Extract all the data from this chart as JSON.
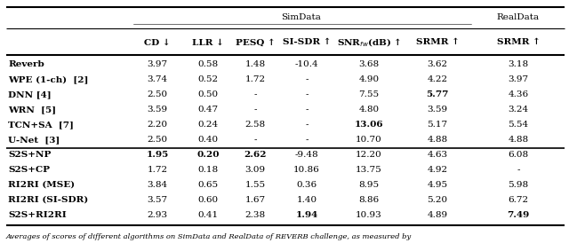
{
  "rows": [
    {
      "name": "Reverb",
      "bold_name": true,
      "values": [
        "3.97",
        "0.58",
        "1.48",
        "-10.4",
        "3.68",
        "3.62",
        "3.18"
      ],
      "bold": [
        false,
        false,
        false,
        false,
        false,
        false,
        false
      ]
    },
    {
      "name": "WPE (1-ch)  [2]",
      "bold_name": true,
      "values": [
        "3.74",
        "0.52",
        "1.72",
        "-",
        "4.90",
        "4.22",
        "3.97"
      ],
      "bold": [
        false,
        false,
        false,
        false,
        false,
        false,
        false
      ]
    },
    {
      "name": "DNN [4]",
      "bold_name": true,
      "values": [
        "2.50",
        "0.50",
        "-",
        "-",
        "7.55",
        "5.77",
        "4.36"
      ],
      "bold": [
        false,
        false,
        false,
        false,
        false,
        true,
        false
      ]
    },
    {
      "name": "WRN  [5]",
      "bold_name": true,
      "values": [
        "3.59",
        "0.47",
        "-",
        "-",
        "4.80",
        "3.59",
        "3.24"
      ],
      "bold": [
        false,
        false,
        false,
        false,
        false,
        false,
        false
      ]
    },
    {
      "name": "TCN+SA  [7]",
      "bold_name": true,
      "values": [
        "2.20",
        "0.24",
        "2.58",
        "-",
        "13.06",
        "5.17",
        "5.54"
      ],
      "bold": [
        false,
        false,
        false,
        false,
        true,
        false,
        false
      ]
    },
    {
      "name": "U-Net  [3]",
      "bold_name": true,
      "values": [
        "2.50",
        "0.40",
        "-",
        "-",
        "10.70",
        "4.88",
        "4.88"
      ],
      "bold": [
        false,
        false,
        false,
        false,
        false,
        false,
        false
      ]
    },
    {
      "name": "S2S+NP",
      "bold_name": true,
      "values": [
        "1.95",
        "0.20",
        "2.62",
        "-9.48",
        "12.20",
        "4.63",
        "6.08"
      ],
      "bold": [
        true,
        true,
        true,
        false,
        false,
        false,
        false
      ]
    },
    {
      "name": "S2S+CP",
      "bold_name": true,
      "values": [
        "1.72",
        "0.18",
        "3.09",
        "10.86",
        "13.75",
        "4.92",
        "-"
      ],
      "bold": [
        false,
        false,
        false,
        false,
        false,
        false,
        false
      ]
    },
    {
      "name": "RI2RI (MSE)",
      "bold_name": true,
      "values": [
        "3.84",
        "0.65",
        "1.55",
        "0.36",
        "8.95",
        "4.95",
        "5.98"
      ],
      "bold": [
        false,
        false,
        false,
        false,
        false,
        false,
        false
      ]
    },
    {
      "name": "RI2RI (SI-SDR)",
      "bold_name": true,
      "values": [
        "3.57",
        "0.60",
        "1.67",
        "1.40",
        "8.86",
        "5.20",
        "6.72"
      ],
      "bold": [
        false,
        false,
        false,
        false,
        false,
        false,
        false
      ]
    },
    {
      "name": "S2S+RI2RI",
      "bold_name": true,
      "values": [
        "2.93",
        "0.41",
        "2.38",
        "1.94",
        "10.93",
        "4.89",
        "7.49"
      ],
      "bold": [
        false,
        false,
        false,
        true,
        false,
        false,
        true
      ]
    }
  ],
  "col_headers": [
    "CD ↓",
    "LLR ↓",
    "PESQ ↑",
    "SI-SDR ↑",
    "SNR$_{fw}$(dB) ↑",
    "SRMR ↑",
    "SRMR ↑"
  ],
  "caption": "Averages of scores of different algorithms on SimData and RealData of REVERB challenge, as measured by",
  "figsize": [
    6.4,
    2.83
  ],
  "dpi": 100
}
